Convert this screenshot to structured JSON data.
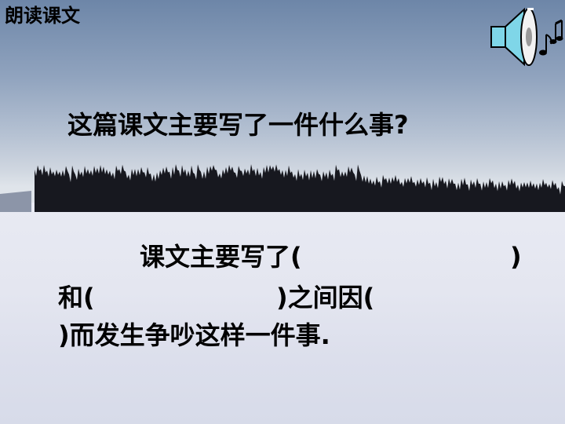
{
  "slide": {
    "topic_label": "朗读课文",
    "question": "这篇课文主要写了一件什么事?",
    "answer": {
      "line1_text": "课文主要写了(",
      "line1_close": ")",
      "line2_text": "和(",
      "line2_mid": ")之间因(",
      "line3_text": ")而发生争吵这样一件事."
    },
    "audio_icon": "speaker-with-music-notes-icon"
  },
  "colors": {
    "text": "#000000",
    "speaker_cyan": "#7fd6e8",
    "sky_top": "#6d86a8",
    "snow": "#e6e8f2",
    "trees": "#17181f"
  }
}
